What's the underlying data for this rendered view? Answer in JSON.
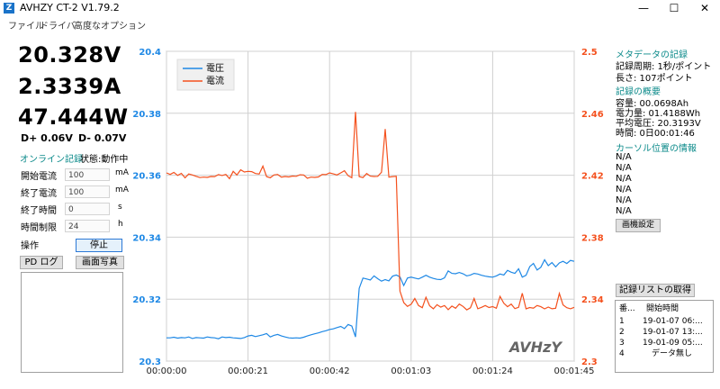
{
  "window": {
    "title": "AVHZY CT-2 V1.79.2",
    "icon_letter": "Z",
    "minimize": "—",
    "maximize": "☐",
    "close": "✕"
  },
  "menu": {
    "items": [
      "ファイル",
      "ドライバ",
      "高度なオプション"
    ]
  },
  "readouts": {
    "voltage": "20.328V",
    "current": "2.3339A",
    "power": "47.444W",
    "dplus": "D+ 0.06V",
    "dminus": "D- 0.07V"
  },
  "online": {
    "label": "オンライン記録",
    "status": "状態:動作中"
  },
  "fields": [
    {
      "label": "開始電流",
      "value": "100",
      "unit": "mA"
    },
    {
      "label": "終了電流",
      "value": "100",
      "unit": "mA"
    },
    {
      "label": "終了時間",
      "value": "0",
      "unit": "s"
    },
    {
      "label": "時間制限",
      "value": "24",
      "unit": "h"
    }
  ],
  "operation": {
    "label": "操作",
    "stop_button": "停止"
  },
  "buttons": {
    "pd_log": "PD ログ",
    "screenshot": "画面写真",
    "screen_settings": "画機設定",
    "fetch_records": "記録リストの取得"
  },
  "metadata": {
    "title": "メタデータの記録",
    "interval": "記録周期: 1秒/ポイント",
    "length": "長さ: 107ポイント"
  },
  "summary": {
    "title": "記録の概要",
    "capacity": "容量: 00.0698Ah",
    "energy": "電力量: 01.4188Wh",
    "avg_voltage": "平均電圧: 20.3193V",
    "time": "時間: 0日00:01:46"
  },
  "cursor": {
    "title": "カーソル位置の情報",
    "values": [
      "N/A",
      "N/A",
      "N/A",
      "N/A",
      "N/A",
      "N/A",
      "N/A"
    ]
  },
  "record_list": {
    "headers": [
      "番...",
      "開始時間"
    ],
    "rows": [
      [
        "1",
        "19-01-07 06:..."
      ],
      [
        "2",
        "19-01-07 13:..."
      ],
      [
        "3",
        "19-01-09 05:..."
      ],
      [
        "4",
        "データ無し"
      ]
    ]
  },
  "colors": {
    "voltage": "#1e88e5",
    "current": "#f4511e",
    "axis_text": "#1e88e5",
    "current_axis_text": "#f4511e"
  },
  "chart_data": {
    "type": "line",
    "watermark": "AVHzY",
    "x_ticks": [
      "00:00:00",
      "00:00:21",
      "00:00:42",
      "00:01:03",
      "00:01:24",
      "00:01:45"
    ],
    "x_range": [
      0,
      105
    ],
    "y_left": {
      "ticks": [
        "20.4",
        "20.38",
        "20.36",
        "20.34",
        "20.32",
        "20.3"
      ],
      "range": [
        20.3,
        20.4
      ]
    },
    "y_right": {
      "ticks": [
        "2.5",
        "2.46",
        "2.42",
        "2.38",
        "2.34",
        "2.3"
      ],
      "range": [
        2.3,
        2.5
      ]
    },
    "grid": true,
    "legend_position": "top-left",
    "series": [
      {
        "name": "電圧",
        "axis": "left",
        "x_step": 1,
        "values": [
          20.3075,
          20.3075,
          20.3077,
          20.3074,
          20.3076,
          20.3075,
          20.3078,
          20.3073,
          20.3076,
          20.3075,
          20.3074,
          20.3078,
          20.3076,
          20.3075,
          20.3072,
          20.3078,
          20.3076,
          20.3077,
          20.3075,
          20.3074,
          20.3073,
          20.3076,
          20.3081,
          20.3083,
          20.3079,
          20.3082,
          20.3085,
          20.3089,
          20.3078,
          20.3083,
          20.3086,
          20.3081,
          20.3078,
          20.3075,
          20.3074,
          20.3075,
          20.3074,
          20.3077,
          20.3081,
          20.3085,
          20.3088,
          20.3091,
          20.3095,
          20.3098,
          20.3102,
          20.3104,
          20.3108,
          20.3112,
          20.3105,
          20.3118,
          20.3113,
          20.3078,
          20.3235,
          20.3268,
          20.3265,
          20.3262,
          20.3275,
          20.3266,
          20.3258,
          20.3263,
          20.3259,
          20.3274,
          20.3278,
          20.3272,
          20.3244,
          20.3268,
          20.3271,
          20.3268,
          20.3265,
          20.3271,
          20.3277,
          20.3271,
          20.3267,
          20.3264,
          20.3263,
          20.3269,
          20.3291,
          20.3283,
          20.3282,
          20.3286,
          20.3282,
          20.3275,
          20.3278,
          20.3283,
          20.3281,
          20.3277,
          20.3274,
          20.3272,
          20.3271,
          20.3275,
          20.3281,
          20.3278,
          20.3293,
          20.3287,
          20.3283,
          20.3298,
          20.3271,
          20.3277,
          20.3305,
          20.3315,
          20.3294,
          20.3303,
          20.3327,
          20.3308,
          20.3318,
          20.3304,
          20.3317,
          20.3322,
          20.3315,
          20.3325,
          20.3322
        ]
      },
      {
        "name": "電流",
        "axis": "right",
        "x_step": 1,
        "values": [
          2.4215,
          2.4205,
          2.4218,
          2.4199,
          2.4212,
          2.4183,
          2.4208,
          2.4202,
          2.4193,
          2.4185,
          2.4188,
          2.4186,
          2.4192,
          2.4191,
          2.4204,
          2.4198,
          2.4205,
          2.4178,
          2.4225,
          2.4202,
          2.4235,
          2.4221,
          2.4225,
          2.4223,
          2.4211,
          2.4208,
          2.4259,
          2.4191,
          2.4184,
          2.4202,
          2.4205,
          2.4188,
          2.4192,
          2.4189,
          2.4195,
          2.4193,
          2.4203,
          2.4202,
          2.4181,
          2.4188,
          2.4186,
          2.4189,
          2.4205,
          2.4204,
          2.4215,
          2.4209,
          2.4202,
          2.4215,
          2.4229,
          2.4197,
          2.4184,
          2.4609,
          2.4191,
          2.4185,
          2.4211,
          2.4194,
          2.4192,
          2.4193,
          2.4219,
          2.4498,
          2.4188,
          2.4191,
          2.4193,
          2.3452,
          2.3378,
          2.3353,
          2.3367,
          2.3404,
          2.3359,
          2.3345,
          2.3412,
          2.3357,
          2.3338,
          2.3364,
          2.3348,
          2.3359,
          2.3332,
          2.3355,
          2.3341,
          2.3368,
          2.3353,
          2.3331,
          2.3344,
          2.3404,
          2.3338,
          2.3347,
          2.3359,
          2.3346,
          2.3352,
          2.3341,
          2.3418,
          2.3373,
          2.3351,
          2.3368,
          2.3339,
          2.3347,
          2.3438,
          2.3337,
          2.3346,
          2.3342,
          2.3359,
          2.3351,
          2.3337,
          2.3349,
          2.3338,
          2.3341,
          2.3437,
          2.3363,
          2.3345,
          2.3338,
          2.3347
        ]
      }
    ]
  }
}
